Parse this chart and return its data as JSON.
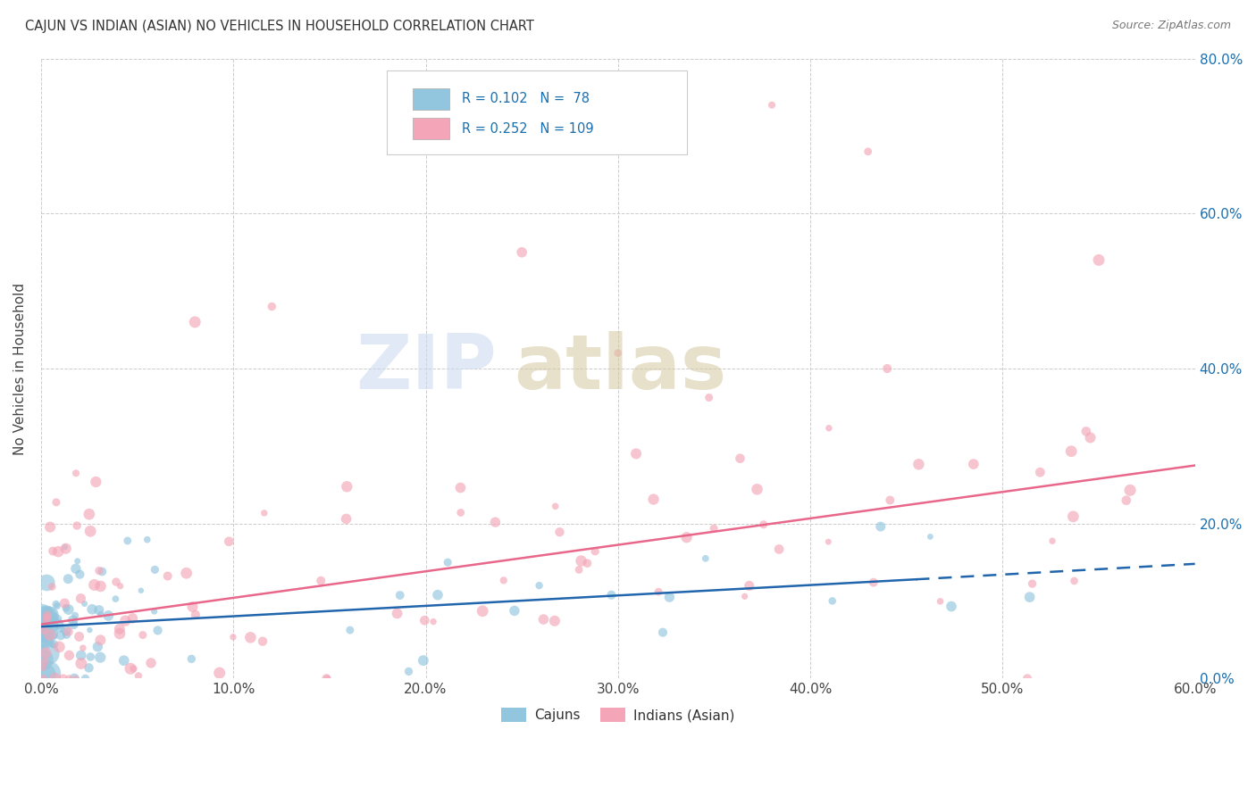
{
  "title": "CAJUN VS INDIAN (ASIAN) NO VEHICLES IN HOUSEHOLD CORRELATION CHART",
  "source": "Source: ZipAtlas.com",
  "ylabel": "No Vehicles in Household",
  "x_label_cajun": "Cajuns",
  "x_label_indian": "Indians (Asian)",
  "xlim": [
    0.0,
    0.6
  ],
  "ylim": [
    0.0,
    0.8
  ],
  "xticks": [
    0.0,
    0.1,
    0.2,
    0.3,
    0.4,
    0.5,
    0.6
  ],
  "yticks": [
    0.0,
    0.2,
    0.4,
    0.6,
    0.8
  ],
  "xtick_labels": [
    "0.0%",
    "10.0%",
    "20.0%",
    "30.0%",
    "40.0%",
    "50.0%",
    "60.0%"
  ],
  "ytick_labels": [
    "0.0%",
    "20.0%",
    "40.0%",
    "60.0%",
    "80.0%"
  ],
  "cajun_color": "#92c5de",
  "indian_color": "#f4a6b8",
  "cajun_line_color": "#2166ac",
  "indian_line_color": "#e8678a",
  "cajun_R": 0.102,
  "cajun_N": 78,
  "indian_R": 0.252,
  "indian_N": 109,
  "legend_color": "#1a6faf",
  "background_color": "#ffffff",
  "grid_color": "#cccccc",
  "cajun_line_x_solid_end": 0.455,
  "cajun_line_y0": 0.067,
  "cajun_line_y_solid_end": 0.128,
  "cajun_line_x_dash_end": 0.6,
  "cajun_line_y_dash_end": 0.148,
  "indian_line_y0": 0.07,
  "indian_line_y_end": 0.275
}
